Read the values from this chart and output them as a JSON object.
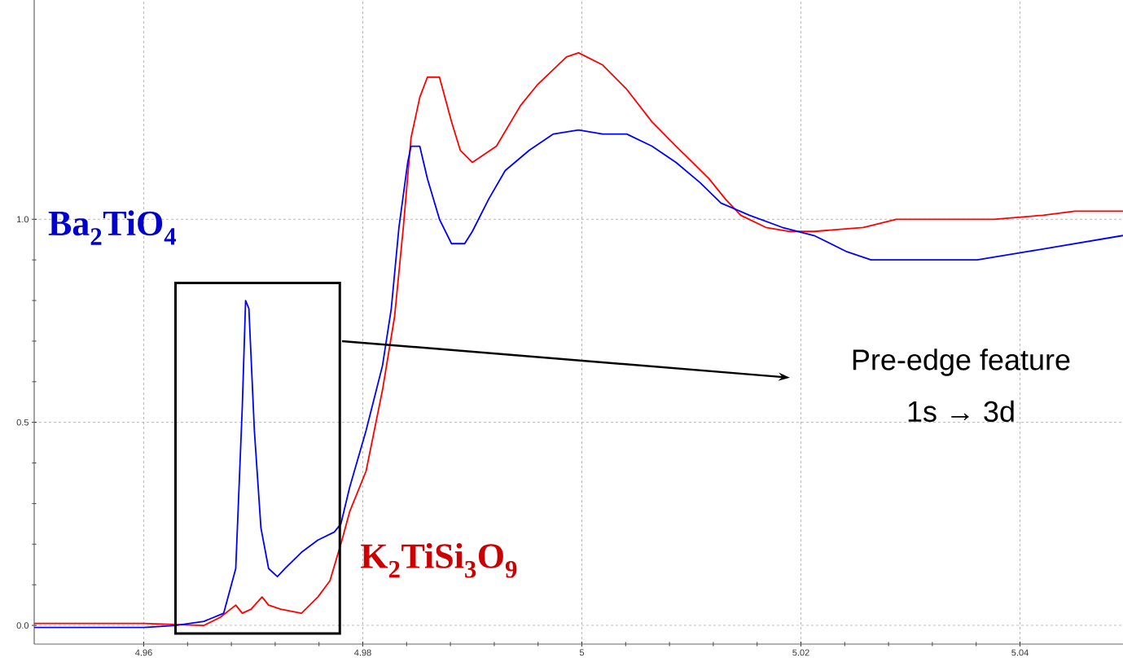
{
  "chart_data": {
    "type": "line",
    "xlim": [
      4.95,
      5.0494
    ],
    "ylim": [
      -0.046,
      1.54
    ],
    "xticks": [
      4.96,
      4.98,
      5,
      5.02,
      5.04
    ],
    "yticks": [
      {
        "value": 0,
        "label": "0.0"
      },
      0.5,
      {
        "value": 1,
        "label": "1.0"
      }
    ],
    "grid": true,
    "annotations": [
      "Pre-edge feature",
      "1s → 3d"
    ],
    "series": [
      {
        "name": "**Ba$_{2}$TiO$_{4}$**",
        "color": "#0000ff",
        "x": [
          4.95,
          4.955,
          4.96,
          4.9629,
          4.9655,
          4.9673,
          4.9684,
          4.969,
          4.9693,
          4.9696,
          4.9701,
          4.9707,
          4.9714,
          4.9722,
          4.9729,
          4.9744,
          4.9759,
          4.9774,
          4.978,
          4.9788,
          4.9803,
          4.9818,
          4.9826,
          4.9833,
          4.9841,
          4.9844,
          4.9852,
          4.9859,
          4.987,
          4.9881,
          4.9893,
          4.99,
          4.9915,
          4.993,
          4.9952,
          4.9974,
          4.9997,
          5.0019,
          5.0041,
          5.0064,
          5.0086,
          5.0108,
          5.0127,
          5.0153,
          5.0183,
          5.0212,
          5.0242,
          5.0264,
          5.0316,
          5.0361,
          5.0406,
          5.045,
          5.0494
        ],
        "values": [
          -0.005,
          -0.005,
          -0.005,
          0.0,
          0.01,
          0.03,
          0.14,
          0.54,
          0.8,
          0.78,
          0.48,
          0.24,
          0.14,
          0.12,
          0.14,
          0.18,
          0.21,
          0.23,
          0.25,
          0.34,
          0.48,
          0.64,
          0.78,
          0.98,
          1.14,
          1.18,
          1.18,
          1.1,
          1.0,
          0.94,
          0.94,
          0.97,
          1.05,
          1.12,
          1.17,
          1.21,
          1.22,
          1.21,
          1.21,
          1.18,
          1.14,
          1.09,
          1.04,
          1.01,
          0.98,
          0.96,
          0.92,
          0.9,
          0.9,
          0.9,
          0.92,
          0.94,
          0.96
        ]
      },
      {
        "name": "**K$_{2}$TiSi$_{3}$O$_{9}$**",
        "color": "#ff0000",
        "x": [
          4.95,
          4.955,
          4.96,
          4.9655,
          4.967,
          4.9684,
          4.969,
          4.9698,
          4.9708,
          4.9714,
          4.9725,
          4.9744,
          4.9759,
          4.977,
          4.9781,
          4.9788,
          4.9803,
          4.9818,
          4.9829,
          4.9837,
          4.9844,
          4.9852,
          4.9859,
          4.987,
          4.9881,
          4.9889,
          4.99,
          4.9911,
          4.9922,
          4.9944,
          4.9959,
          4.9986,
          4.9997,
          5.0019,
          5.0041,
          5.0064,
          5.0086,
          5.0101,
          5.0116,
          5.0131,
          5.0145,
          5.0168,
          5.019,
          5.0212,
          5.0257,
          5.0287,
          5.0331,
          5.0376,
          5.0421,
          5.045,
          5.0494
        ],
        "values": [
          0.005,
          0.005,
          0.005,
          0.0,
          0.02,
          0.05,
          0.03,
          0.04,
          0.07,
          0.05,
          0.04,
          0.03,
          0.07,
          0.11,
          0.21,
          0.28,
          0.38,
          0.58,
          0.76,
          0.98,
          1.2,
          1.3,
          1.35,
          1.35,
          1.24,
          1.17,
          1.14,
          1.16,
          1.18,
          1.28,
          1.33,
          1.4,
          1.41,
          1.38,
          1.32,
          1.24,
          1.18,
          1.14,
          1.1,
          1.05,
          1.01,
          0.98,
          0.97,
          0.97,
          0.98,
          1.0,
          1.0,
          1.0,
          1.01,
          1.02,
          1.02
        ]
      }
    ]
  }
}
